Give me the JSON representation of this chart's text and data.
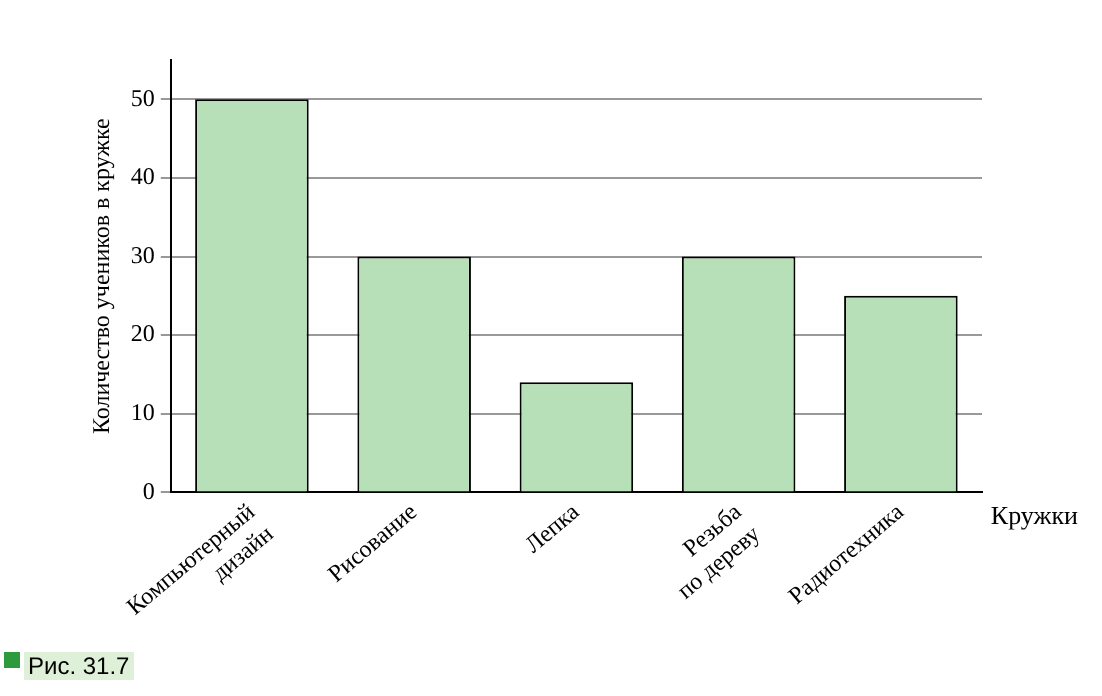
{
  "chart_data": {
    "type": "bar",
    "ylabel": "Количество учеников в кружке",
    "xlabel": "Кружки",
    "categories": [
      "Компьютерный дизайн",
      "Рисование",
      "Лепка",
      "Резьба по дереву",
      "Радиотехника"
    ],
    "values": [
      50,
      30,
      14,
      30,
      25
    ],
    "color": "#b8e0b8",
    "ylim": [
      0,
      55
    ],
    "yticks": [
      0,
      10,
      20,
      30,
      40,
      50
    ],
    "grid": "y",
    "legend": false,
    "annotations": [
      "Рис. 31.7"
    ]
  }
}
